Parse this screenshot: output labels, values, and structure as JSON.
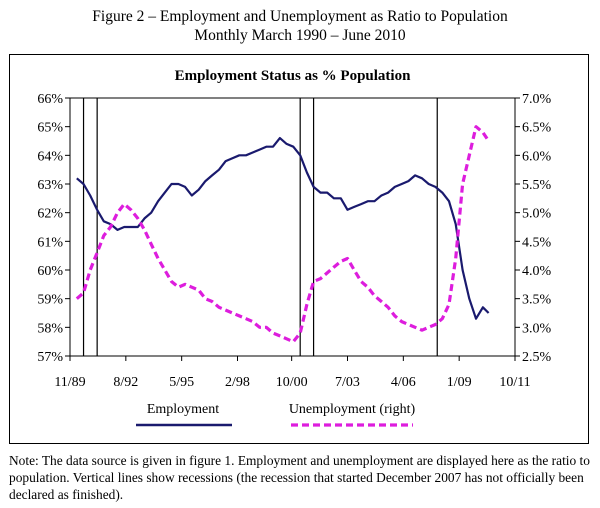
{
  "figure": {
    "title_line1": "Figure 2 – Employment and Unemployment as Ratio to Population",
    "title_line2": "Monthly March 1990 – June 2010"
  },
  "note": "Note: The data source is given in figure 1. Employment and unemployment are displayed here as the ratio to population. Vertical lines show recessions (the recession that started December 2007 has not officially been declared as finished).",
  "colors": {
    "employment": "#1a1a6e",
    "unemployment": "#dd1ddd"
  },
  "chart_data": {
    "type": "line",
    "title": "Employment Status as % Population",
    "x_ticks": [
      "11/89",
      "8/92",
      "5/95",
      "2/98",
      "10/00",
      "7/03",
      "4/06",
      "1/09",
      "10/11"
    ],
    "x_tick_values": [
      1989.833,
      1992.583,
      1995.333,
      1998.083,
      2000.75,
      2003.5,
      2006.25,
      2009.0,
      2011.75
    ],
    "xlim": [
      1989.833,
      2011.75
    ],
    "ylim_left": [
      57,
      66
    ],
    "y_ticks_left": [
      "57%",
      "58%",
      "59%",
      "60%",
      "61%",
      "62%",
      "63%",
      "64%",
      "65%",
      "66%"
    ],
    "ylim_right": [
      2.5,
      7.0
    ],
    "y_ticks_right": [
      "2.5%",
      "3.0%",
      "3.5%",
      "4.0%",
      "4.5%",
      "5.0%",
      "5.5%",
      "6.0%",
      "6.5%",
      "7.0%"
    ],
    "recession_lines": [
      1990.5,
      1991.17,
      2001.17,
      2001.83,
      2007.92
    ],
    "legend": {
      "placement": "bottom",
      "entries": [
        "Employment",
        "Unemployment (right)"
      ]
    },
    "series": [
      {
        "name": "Employment",
        "axis": "left",
        "style": "solid",
        "x": [
          1990.17,
          1990.5,
          1990.83,
          1991.17,
          1991.5,
          1991.83,
          1992.17,
          1992.5,
          1992.83,
          1993.17,
          1993.5,
          1993.83,
          1994.17,
          1994.5,
          1994.83,
          1995.17,
          1995.5,
          1995.83,
          1996.17,
          1996.5,
          1996.83,
          1997.17,
          1997.5,
          1997.83,
          1998.17,
          1998.5,
          1998.83,
          1999.17,
          1999.5,
          1999.83,
          2000.17,
          2000.5,
          2000.83,
          2001.17,
          2001.5,
          2001.83,
          2002.17,
          2002.5,
          2002.83,
          2003.17,
          2003.5,
          2003.83,
          2004.17,
          2004.5,
          2004.83,
          2005.17,
          2005.5,
          2005.83,
          2006.17,
          2006.5,
          2006.83,
          2007.17,
          2007.5,
          2007.83,
          2008.17,
          2008.5,
          2008.83,
          2009.17,
          2009.5,
          2009.83,
          2010.17,
          2010.45
        ],
        "values": [
          63.2,
          63.0,
          62.6,
          62.1,
          61.7,
          61.6,
          61.4,
          61.5,
          61.5,
          61.5,
          61.8,
          62.0,
          62.4,
          62.7,
          63.0,
          63.0,
          62.9,
          62.6,
          62.8,
          63.1,
          63.3,
          63.5,
          63.8,
          63.9,
          64.0,
          64.0,
          64.1,
          64.2,
          64.3,
          64.3,
          64.6,
          64.4,
          64.3,
          64.0,
          63.4,
          62.9,
          62.7,
          62.7,
          62.5,
          62.5,
          62.1,
          62.2,
          62.3,
          62.4,
          62.4,
          62.6,
          62.7,
          62.9,
          63.0,
          63.1,
          63.3,
          63.2,
          63.0,
          62.9,
          62.7,
          62.4,
          61.6,
          60.0,
          59.0,
          58.3,
          58.7,
          58.5
        ]
      },
      {
        "name": "Unemployment (right)",
        "axis": "right",
        "style": "dashed",
        "x": [
          1990.17,
          1990.5,
          1990.83,
          1991.17,
          1991.5,
          1991.83,
          1992.17,
          1992.5,
          1992.83,
          1993.17,
          1993.5,
          1993.83,
          1994.17,
          1994.5,
          1994.83,
          1995.17,
          1995.5,
          1995.83,
          1996.17,
          1996.5,
          1996.83,
          1997.17,
          1997.5,
          1997.83,
          1998.17,
          1998.5,
          1998.83,
          1999.17,
          1999.5,
          1999.83,
          2000.17,
          2000.5,
          2000.83,
          2001.17,
          2001.5,
          2001.83,
          2002.17,
          2002.5,
          2002.83,
          2003.17,
          2003.5,
          2003.83,
          2004.17,
          2004.5,
          2004.83,
          2005.17,
          2005.5,
          2005.83,
          2006.17,
          2006.5,
          2006.83,
          2007.17,
          2007.5,
          2007.83,
          2008.17,
          2008.5,
          2008.83,
          2009.17,
          2009.5,
          2009.83,
          2010.17,
          2010.45
        ],
        "values": [
          3.5,
          3.6,
          4.0,
          4.3,
          4.6,
          4.75,
          5.0,
          5.15,
          5.05,
          4.9,
          4.7,
          4.45,
          4.2,
          4.0,
          3.8,
          3.7,
          3.75,
          3.7,
          3.65,
          3.5,
          3.45,
          3.35,
          3.3,
          3.25,
          3.2,
          3.15,
          3.1,
          3.0,
          3.0,
          2.9,
          2.85,
          2.8,
          2.75,
          2.9,
          3.4,
          3.8,
          3.85,
          3.95,
          4.05,
          4.15,
          4.2,
          4.0,
          3.8,
          3.7,
          3.55,
          3.45,
          3.35,
          3.2,
          3.1,
          3.05,
          3.0,
          2.95,
          3.0,
          3.05,
          3.15,
          3.4,
          4.2,
          5.5,
          6.0,
          6.5,
          6.4,
          6.25
        ]
      }
    ]
  }
}
